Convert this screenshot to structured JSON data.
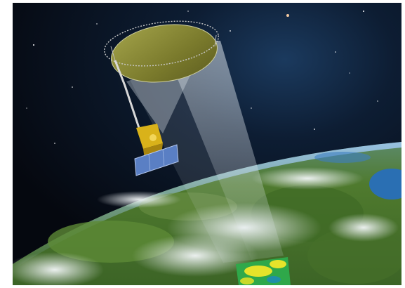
{
  "scene": {
    "subject": "satellite-with-mesh-antenna",
    "colors": {
      "space": "#05080f",
      "space_glow": "#1b3a5e",
      "ocean": "#2a6fb3",
      "land_green": "#4f7a2e",
      "cloud": "#e9eef2",
      "reflector": "#8d8d3a",
      "satellite_gold": "#d9b21a",
      "solar_panel": "#5a7fc4",
      "beam": "#dfe7ef",
      "data_swath_yellow": "#e6e32a",
      "data_swath_green": "#2fa84a"
    }
  }
}
